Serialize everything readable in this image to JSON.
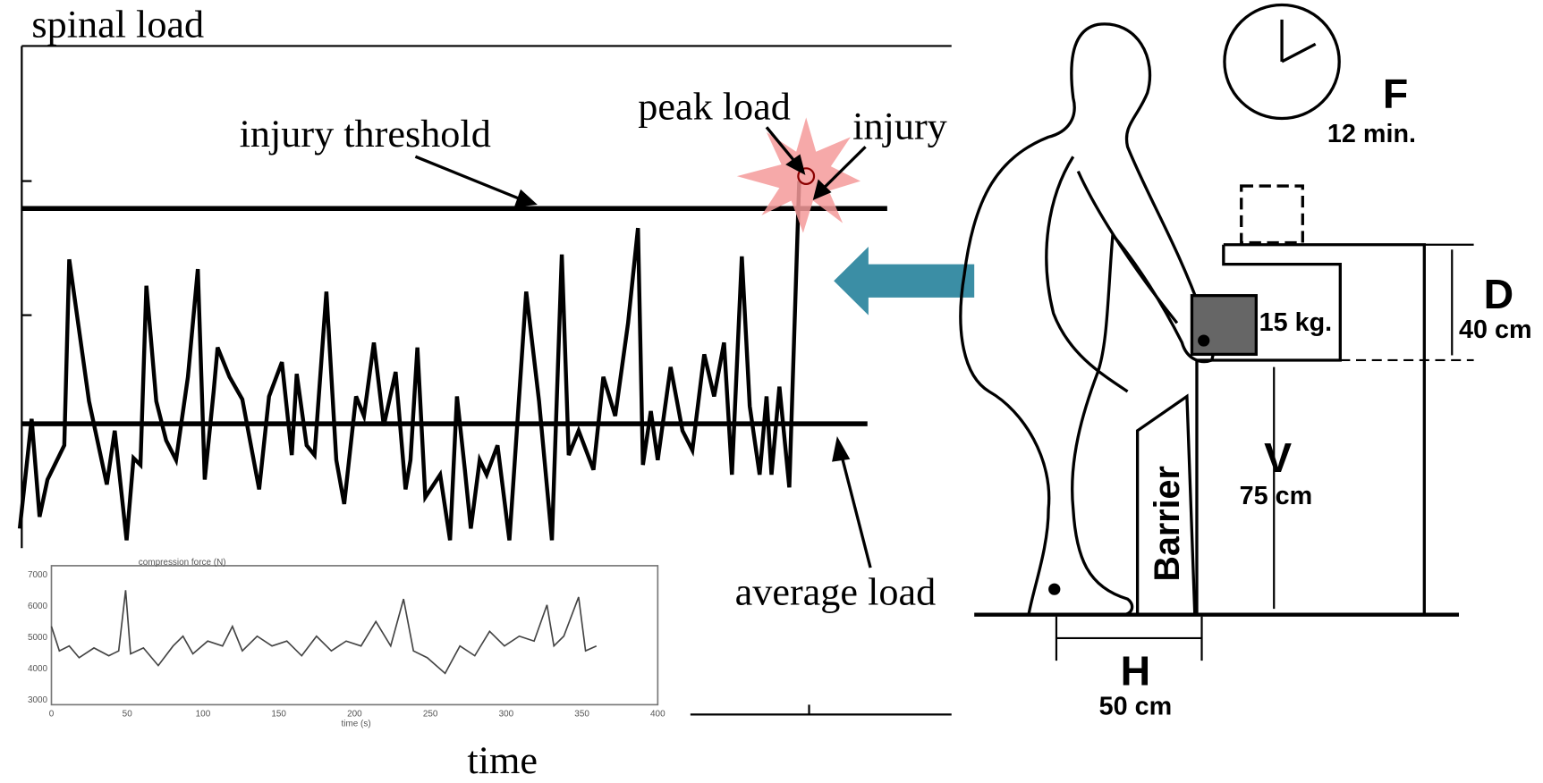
{
  "chart_panel": {
    "y_label": "spinal load",
    "x_label": "time",
    "annotations": {
      "injury_threshold": "injury threshold",
      "peak_load": "peak load",
      "injury": "injury",
      "average_load": "average load"
    },
    "inset": {
      "title": "compression force (N)",
      "x_label": "time (s)",
      "yticks": [
        "7000",
        "6000",
        "5000",
        "4000",
        "3000"
      ],
      "xticks": [
        "0",
        "50",
        "100",
        "150",
        "200",
        "250",
        "300",
        "350",
        "400"
      ]
    }
  },
  "lifting_diagram": {
    "frequency": {
      "letter": "F",
      "value": "12 min."
    },
    "distance": {
      "letter": "D",
      "value": "40 cm"
    },
    "vertical": {
      "letter": "V",
      "value": "75 cm"
    },
    "horizontal": {
      "letter": "H",
      "value": "50 cm"
    },
    "load": "15 kg.",
    "barrier": "Barrier"
  }
}
